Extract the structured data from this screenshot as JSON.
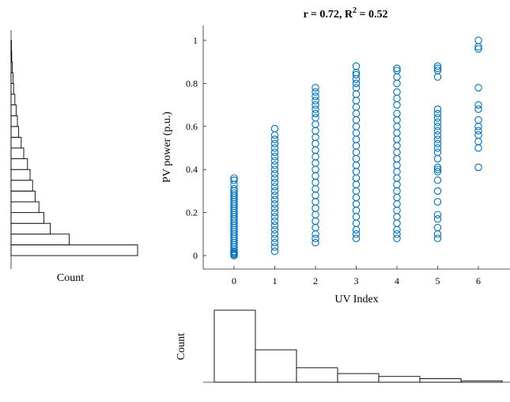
{
  "chart_data": [
    {
      "type": "scatter",
      "title": "r = 0.72, R",
      "title_sup": "2",
      "title_tail": " = 0.52",
      "xlabel": "UV Index",
      "ylabel": "PV power (p.u.)",
      "xlim": [
        -1,
        7
      ],
      "ylim": [
        -0.05,
        1.05
      ],
      "xticks": [
        0,
        1,
        2,
        3,
        4,
        5,
        6
      ],
      "yticks": [
        0,
        0.2,
        0.4,
        0.6,
        0.8,
        1
      ],
      "ytick_labels": [
        "0",
        "0.2",
        "0.4",
        "0.6",
        "0.8",
        "1"
      ],
      "marker_color": "#0072bd",
      "series": [
        {
          "x": 0,
          "values": [
            0.0,
            0.005,
            0.01,
            0.015,
            0.02,
            0.03,
            0.04,
            0.05,
            0.06,
            0.07,
            0.08,
            0.09,
            0.1,
            0.11,
            0.12,
            0.13,
            0.14,
            0.15,
            0.16,
            0.17,
            0.18,
            0.19,
            0.2,
            0.21,
            0.22,
            0.23,
            0.24,
            0.25,
            0.26,
            0.27,
            0.28,
            0.29,
            0.3,
            0.31,
            0.33,
            0.35,
            0.36
          ]
        },
        {
          "x": 1,
          "values": [
            0.02,
            0.04,
            0.06,
            0.08,
            0.1,
            0.12,
            0.14,
            0.16,
            0.18,
            0.2,
            0.22,
            0.24,
            0.26,
            0.28,
            0.3,
            0.32,
            0.34,
            0.36,
            0.38,
            0.4,
            0.42,
            0.44,
            0.46,
            0.48,
            0.5,
            0.52,
            0.54,
            0.56,
            0.59
          ]
        },
        {
          "x": 2,
          "values": [
            0.06,
            0.08,
            0.1,
            0.13,
            0.16,
            0.19,
            0.22,
            0.25,
            0.28,
            0.31,
            0.34,
            0.37,
            0.4,
            0.43,
            0.46,
            0.49,
            0.52,
            0.55,
            0.58,
            0.61,
            0.64,
            0.66,
            0.68,
            0.7,
            0.72,
            0.74,
            0.76,
            0.78
          ]
        },
        {
          "x": 3,
          "values": [
            0.08,
            0.1,
            0.12,
            0.15,
            0.18,
            0.21,
            0.24,
            0.27,
            0.3,
            0.33,
            0.36,
            0.39,
            0.42,
            0.45,
            0.48,
            0.51,
            0.54,
            0.57,
            0.6,
            0.63,
            0.66,
            0.69,
            0.72,
            0.75,
            0.78,
            0.8,
            0.82,
            0.84,
            0.85,
            0.88
          ]
        },
        {
          "x": 4,
          "values": [
            0.08,
            0.1,
            0.12,
            0.15,
            0.18,
            0.21,
            0.24,
            0.27,
            0.3,
            0.33,
            0.36,
            0.39,
            0.42,
            0.45,
            0.48,
            0.51,
            0.54,
            0.57,
            0.6,
            0.63,
            0.66,
            0.7,
            0.73,
            0.76,
            0.8,
            0.83,
            0.86,
            0.87
          ]
        },
        {
          "x": 5,
          "values": [
            0.08,
            0.1,
            0.13,
            0.17,
            0.19,
            0.25,
            0.3,
            0.35,
            0.39,
            0.4,
            0.41,
            0.45,
            0.48,
            0.5,
            0.52,
            0.54,
            0.56,
            0.58,
            0.6,
            0.62,
            0.64,
            0.66,
            0.68,
            0.83,
            0.86,
            0.87,
            0.88
          ]
        },
        {
          "x": 6,
          "values": [
            0.41,
            0.5,
            0.53,
            0.56,
            0.58,
            0.6,
            0.63,
            0.68,
            0.7,
            0.78,
            0.96,
            0.97,
            1.0
          ]
        }
      ]
    },
    {
      "type": "bar",
      "orientation": "horizontal",
      "xlabel": "Count",
      "bin_edges": [
        0,
        0.05,
        0.1,
        0.15,
        0.2,
        0.25,
        0.3,
        0.35,
        0.4,
        0.45,
        0.5,
        0.55,
        0.6,
        0.65,
        0.7,
        0.75,
        0.8,
        0.85,
        0.9,
        0.95,
        1.0
      ],
      "values": [
        100,
        46,
        31,
        26,
        22,
        19,
        17,
        15,
        13,
        10,
        8,
        6,
        5,
        4,
        3,
        2,
        1.5,
        1,
        0.5,
        0.3
      ]
    },
    {
      "type": "bar",
      "ylabel": "Count",
      "categories": [
        "0",
        "1",
        "2",
        "3",
        "4",
        "5",
        "6"
      ],
      "values": [
        100,
        45,
        20,
        12,
        8,
        5,
        2
      ]
    }
  ]
}
